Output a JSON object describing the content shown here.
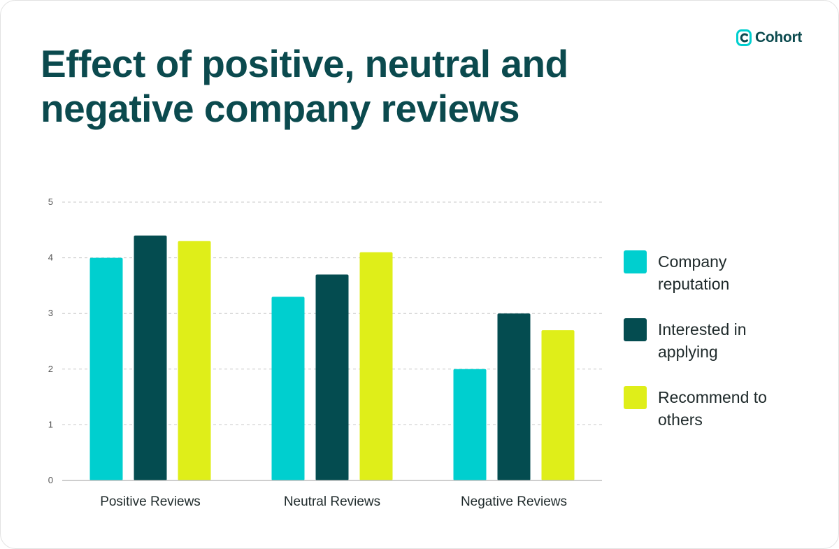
{
  "header": {
    "title": "Effect of positive, neutral and negative company reviews",
    "logo_text": "Cohort",
    "logo_icon": "cohort-logo-icon"
  },
  "colors": {
    "title": "#0b4a4e",
    "company_reputation": "#00cfcf",
    "interested_in_applying": "#044c50",
    "recommend_to_others": "#dfee19",
    "grid": "#c8c8c8",
    "axis": "#bdbdbd"
  },
  "chart_data": {
    "type": "bar",
    "title": "Effect of positive, neutral and negative company reviews",
    "categories": [
      "Positive Reviews",
      "Neutral Reviews",
      "Negative Reviews"
    ],
    "series": [
      {
        "name": "Company reputation",
        "color": "#00cfcf",
        "values": [
          4.0,
          3.3,
          2.0
        ]
      },
      {
        "name": "Interested in applying",
        "color": "#044c50",
        "values": [
          4.4,
          3.7,
          3.0
        ]
      },
      {
        "name": "Recommend to others",
        "color": "#dfee19",
        "values": [
          4.3,
          4.1,
          2.7
        ]
      }
    ],
    "yticks": [
      "0",
      "1",
      "2",
      "3",
      "4",
      "5"
    ],
    "ylim": [
      0,
      5
    ],
    "xlabel": "",
    "ylabel": "",
    "grid": true,
    "legend_position": "right"
  }
}
